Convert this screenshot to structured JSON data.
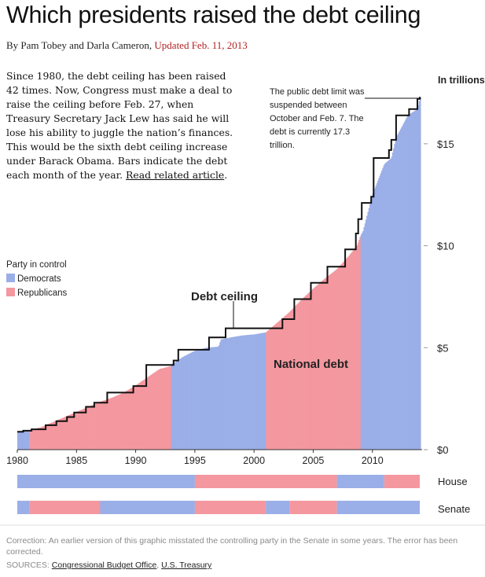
{
  "header": {
    "title": "Which presidents raised the debt ceiling",
    "byline_prefix": "By Pam Tobey and Darla Cameron, ",
    "updated": "Updated Feb. 11, 2013"
  },
  "intro": {
    "text": "Since 1980, the debt ceiling has been raised 42 times. Now, Congress must make a deal to raise the ceiling before Feb. 27, when Treasury Secretary Jack Lew has said he will lose his ability to juggle the nation’s finances. This would be the sixth debt ceiling increase under Barack Obama. Bars indicate the debt each month of the year. ",
    "link": "Read related article",
    "link_suffix": "."
  },
  "legend": {
    "title": "Party in control",
    "democrats": "Democrats",
    "republicans": "Republicans"
  },
  "colors": {
    "dem": "#9aaee8",
    "rep": "#f4979f",
    "ceiling": "#111111"
  },
  "chart_data": {
    "type": "area",
    "title": "Which presidents raised the debt ceiling",
    "ylabel": "In trillions",
    "xlim": [
      1980,
      2014.2
    ],
    "ylim": [
      0,
      17.5
    ],
    "xticks": [
      1980,
      1985,
      1990,
      1995,
      2000,
      2005,
      2010
    ],
    "xtick_labels": [
      "1980",
      "1985",
      "1990",
      "1995",
      "2000",
      "2005",
      "2010"
    ],
    "yticks": [
      0,
      5,
      10,
      15
    ],
    "ytick_labels": [
      "$0",
      "$5",
      "$10",
      "$15"
    ],
    "debt_label": "National debt",
    "ceiling_label": "Debt ceiling",
    "annotation": "The public debt limit was suspended between October and Feb. 7. The debt is currently 17.3 trillion.",
    "debt": {
      "x": [
        1980,
        1981,
        1982,
        1983,
        1984,
        1985,
        1986,
        1987,
        1988,
        1989,
        1990,
        1991,
        1992,
        1993,
        1993.1,
        1994,
        1995,
        1996,
        1997,
        1997.2,
        1998,
        1999,
        2000,
        2001,
        2001.1,
        2002,
        2003,
        2004,
        2005,
        2006,
        2007,
        2008,
        2008.7,
        2009,
        2009.2,
        2010,
        2011,
        2011.6,
        2012,
        2013,
        2013.8,
        2014
      ],
      "y": [
        0.85,
        0.95,
        1.1,
        1.35,
        1.6,
        1.85,
        2.1,
        2.35,
        2.55,
        2.8,
        3.15,
        3.55,
        3.95,
        4.1,
        4.2,
        4.55,
        4.85,
        5.0,
        5.05,
        5.4,
        5.5,
        5.6,
        5.65,
        5.75,
        5.8,
        6.25,
        6.75,
        7.35,
        7.9,
        8.4,
        8.85,
        9.5,
        10.0,
        10.5,
        10.7,
        12.5,
        14.0,
        14.3,
        15.3,
        16.4,
        16.7,
        17.2
      ]
    },
    "ceiling": {
      "x": [
        1980,
        1980.5,
        1981.2,
        1982.4,
        1983.3,
        1984.2,
        1984.8,
        1985.8,
        1986.5,
        1987.6,
        1989.8,
        1990.9,
        1993.2,
        1993.6,
        1996.2,
        1997.6,
        2002.4,
        2003.4,
        2004.8,
        2006.2,
        2007.7,
        2008.6,
        2008.8,
        2009.1,
        2009.9,
        2010.1,
        2011.4,
        2011.6,
        2012.0,
        2013.1,
        2013.3,
        2013.8,
        2014.0
      ],
      "y": [
        0.88,
        0.93,
        1.0,
        1.2,
        1.4,
        1.6,
        1.82,
        2.1,
        2.3,
        2.8,
        3.12,
        4.15,
        4.37,
        4.9,
        5.5,
        5.95,
        6.4,
        7.38,
        8.18,
        8.97,
        9.82,
        10.6,
        11.3,
        12.1,
        12.4,
        14.3,
        14.69,
        15.19,
        16.39,
        16.7,
        16.7,
        17.2,
        17.3
      ]
    },
    "party_periods": [
      {
        "from": 1980.0,
        "to": 1981.0,
        "party": "D"
      },
      {
        "from": 1981.0,
        "to": 1993.0,
        "party": "R"
      },
      {
        "from": 1993.0,
        "to": 2001.0,
        "party": "D"
      },
      {
        "from": 2001.0,
        "to": 2009.0,
        "party": "R"
      },
      {
        "from": 2009.0,
        "to": 2014.2,
        "party": "D"
      }
    ],
    "house": {
      "label": "House",
      "periods": [
        {
          "from": 1980,
          "to": 1995,
          "party": "D"
        },
        {
          "from": 1995,
          "to": 2007,
          "party": "R"
        },
        {
          "from": 2007,
          "to": 2011,
          "party": "D"
        },
        {
          "from": 2011,
          "to": 2014.2,
          "party": "R"
        }
      ]
    },
    "senate": {
      "label": "Senate",
      "periods": [
        {
          "from": 1980,
          "to": 1981,
          "party": "D"
        },
        {
          "from": 1981,
          "to": 1987,
          "party": "R"
        },
        {
          "from": 1987,
          "to": 1995,
          "party": "D"
        },
        {
          "from": 1995,
          "to": 2001,
          "party": "R"
        },
        {
          "from": 2001,
          "to": 2003,
          "party": "D"
        },
        {
          "from": 2003,
          "to": 2007,
          "party": "R"
        },
        {
          "from": 2007,
          "to": 2014.2,
          "party": "D"
        }
      ]
    }
  },
  "footer": {
    "correction": "Correction: An earlier version of this graphic misstated the controlling party in the Senate in some years. The error has been corrected.",
    "sources_prefix": "SOURCES: ",
    "source1": "Congressional Budget Office",
    "sep": ", ",
    "source2": "U.S. Treasury"
  }
}
